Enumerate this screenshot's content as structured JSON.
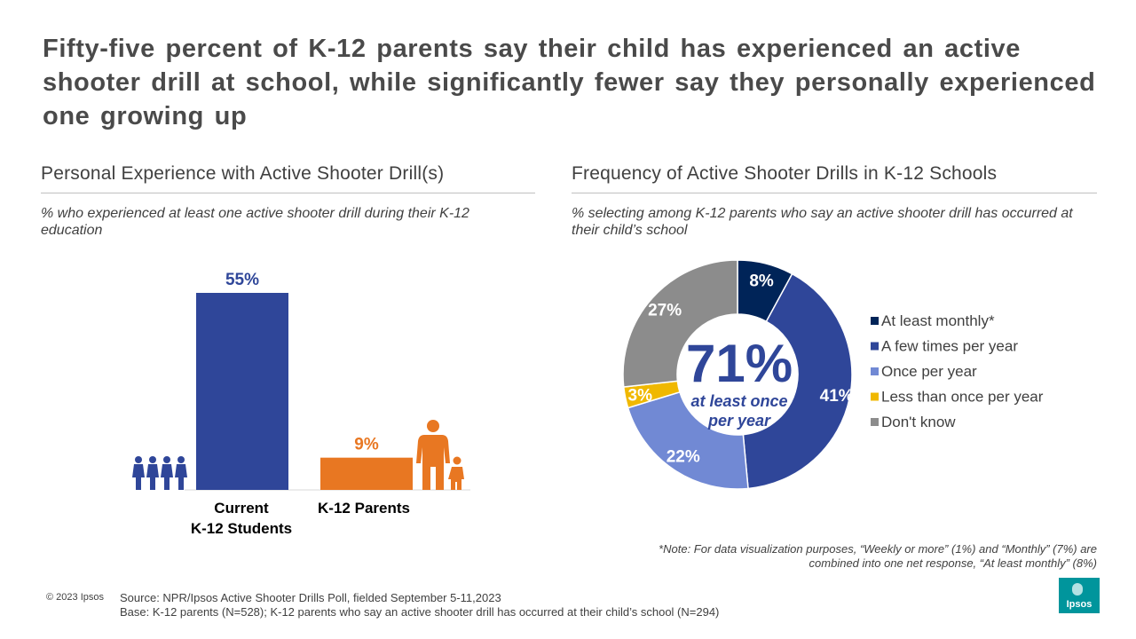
{
  "headline": "Fifty-five percent of K-12 parents say their child has experienced an active shooter drill at school, while significantly fewer say they personally experienced one growing up",
  "left_panel": {
    "title": "Personal Experience with Active Shooter Drill(s)",
    "subtitle": "% who experienced at least one active shooter drill during their K-12 education",
    "icons": [
      "students-group-icon",
      "parent-child-icon"
    ]
  },
  "right_panel": {
    "title": "Frequency of Active Shooter Drills in K-12 Schools",
    "subtitle": "% selecting among K-12 parents who say an active shooter drill has occurred at their child’s school",
    "center_value": "71%",
    "center_caption": [
      "at least once",
      "per year"
    ]
  },
  "note": "*Note: For data visualization purposes, “Weekly or more” (1%) and “Monthly” (7%) are combined into one net response, “At least monthly” (8%)",
  "footer": {
    "copyright": "© 2023 Ipsos",
    "source": "Source: NPR/Ipsos Active Shooter Drills Poll, fielded September 5-11,2023",
    "base": "Base: K-12 parents (N=528); K-12 parents who say an active shooter drill has occurred at their child’s school (N=294)",
    "logo_text": "Ipsos"
  },
  "colors": {
    "navy": "#002458",
    "blue": "#2f4699",
    "light_blue": "#7189d4",
    "yellow": "#f0b800",
    "gray": "#8c8c8c",
    "orange": "#e87722",
    "brand": "#00959c"
  },
  "chart_data": [
    {
      "type": "bar",
      "title": "Personal Experience with Active Shooter Drill(s)",
      "categories": [
        "Current K-12 Students",
        "K-12 Parents"
      ],
      "category_lines": [
        [
          "Current",
          "K-12 Students"
        ],
        [
          "K-12 Parents"
        ]
      ],
      "values": [
        55,
        9
      ],
      "labels": [
        "55%",
        "9%"
      ],
      "colors": [
        "#2f4699",
        "#e87722"
      ],
      "ylim": [
        0,
        55
      ]
    },
    {
      "type": "pie",
      "title": "Frequency of Active Shooter Drills in K-12 Schools",
      "categories": [
        "At least monthly*",
        "A few times per year",
        "Once per year",
        "Less than once per year",
        "Don't know"
      ],
      "values": [
        8,
        41,
        22,
        3,
        27
      ],
      "labels": [
        "8%",
        "41%",
        "22%",
        "3%",
        "27%"
      ],
      "colors": [
        "#002458",
        "#2f4699",
        "#7189d4",
        "#f0b800",
        "#8c8c8c"
      ],
      "legend": "right"
    }
  ]
}
